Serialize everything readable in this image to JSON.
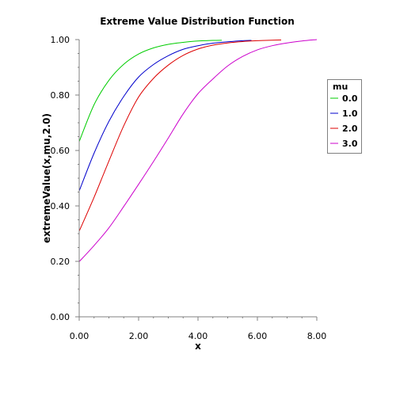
{
  "chart_data": {
    "type": "line",
    "title": "Extreme Value Distribution Function",
    "xlabel": "x",
    "ylabel": "extremeValue(x,mu,2.0)",
    "xlim": [
      0,
      8
    ],
    "ylim": [
      0,
      1
    ],
    "x_ticks": [
      "0.00",
      "2.00",
      "4.00",
      "6.00",
      "8.00"
    ],
    "y_ticks": [
      "0.00",
      "0.20",
      "0.40",
      "0.60",
      "0.80",
      "1.00"
    ],
    "grid": false,
    "legend": {
      "title": "mu",
      "position": "right"
    },
    "x": [
      0,
      0.5,
      1,
      1.5,
      2,
      2.5,
      3,
      3.5,
      4,
      4.5,
      5,
      5.5,
      6,
      6.5,
      7,
      7.5,
      8
    ],
    "series": [
      {
        "name": "0.0",
        "color": "#00cc00",
        "values": [
          0.632,
          0.765,
          0.853,
          0.911,
          0.948,
          0.97,
          0.983,
          0.99,
          0.995,
          0.997,
          0.998,
          0.999,
          1.0,
          1.0,
          1.0,
          1.0,
          1.0
        ],
        "visible_range": [
          0,
          4.8
        ]
      },
      {
        "name": "1.0",
        "color": "#0000cc",
        "values": [
          0.454,
          0.59,
          0.705,
          0.795,
          0.865,
          0.91,
          0.942,
          0.965,
          0.978,
          0.987,
          0.992,
          0.996,
          0.998,
          0.999,
          1.0,
          1.0,
          1.0
        ],
        "visible_range": [
          0,
          5.8
        ]
      },
      {
        "name": "2.0",
        "color": "#dd0000",
        "values": [
          0.309,
          0.431,
          0.562,
          0.689,
          0.793,
          0.86,
          0.908,
          0.943,
          0.966,
          0.98,
          0.988,
          0.993,
          0.996,
          0.998,
          0.999,
          1.0,
          1.0
        ],
        "visible_range": [
          0,
          6.8
        ]
      },
      {
        "name": "3.0",
        "color": "#cc00cc",
        "values": [
          0.199,
          0.257,
          0.321,
          0.398,
          0.478,
          0.56,
          0.645,
          0.732,
          0.805,
          0.858,
          0.905,
          0.939,
          0.963,
          0.978,
          0.988,
          0.995,
          1.0
        ],
        "visible_range": [
          0,
          8
        ]
      }
    ]
  }
}
